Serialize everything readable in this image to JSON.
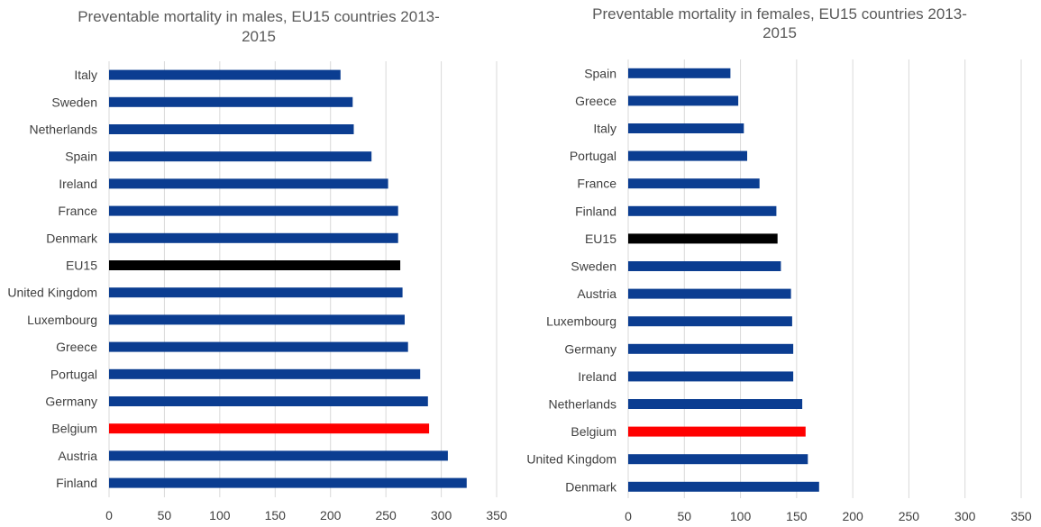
{
  "colors": {
    "default": "#0b3d91",
    "eu15": "#000000",
    "belgium": "#ff0000",
    "grid": "#d9d9d9"
  },
  "chart_data": [
    {
      "type": "bar",
      "orientation": "horizontal",
      "title_lines": [
        "Preventable mortality in males, EU15 countries  2013-",
        "2015"
      ],
      "categories": [
        "Italy",
        "Sweden",
        "Netherlands",
        "Spain",
        "Ireland",
        "France",
        "Denmark",
        "EU15",
        "United Kingdom",
        "Luxembourg",
        "Greece",
        "Portugal",
        "Germany",
        "Belgium",
        "Austria",
        "Finland"
      ],
      "values": [
        209,
        220,
        221,
        237,
        252,
        261,
        261,
        263,
        265,
        267,
        270,
        281,
        288,
        289,
        306,
        323
      ],
      "xlim": [
        0,
        350
      ],
      "xticks": [
        "0",
        "50",
        "100",
        "150",
        "200",
        "250",
        "300",
        "350"
      ],
      "grid": true,
      "highlight": {
        "EU15": "eu15",
        "Belgium": "belgium"
      }
    },
    {
      "type": "bar",
      "orientation": "horizontal",
      "title_lines": [
        "Preventable mortality in females, EU15 countries  2013-",
        "2015"
      ],
      "categories": [
        "Spain",
        "Greece",
        "Italy",
        "Portugal",
        "France",
        "Finland",
        "EU15",
        "Sweden",
        "Austria",
        "Luxembourg",
        "Germany",
        "Ireland",
        "Netherlands",
        "Belgium",
        "United Kingdom",
        "Denmark"
      ],
      "values": [
        91,
        98,
        103,
        106,
        117,
        132,
        133,
        136,
        145,
        146,
        147,
        147,
        155,
        158,
        160,
        170
      ],
      "xlim": [
        0,
        350
      ],
      "xticks": [
        "0",
        "50",
        "100",
        "150",
        "200",
        "250",
        "300",
        "350"
      ],
      "grid": true,
      "highlight": {
        "EU15": "eu15",
        "Belgium": "belgium"
      }
    }
  ]
}
